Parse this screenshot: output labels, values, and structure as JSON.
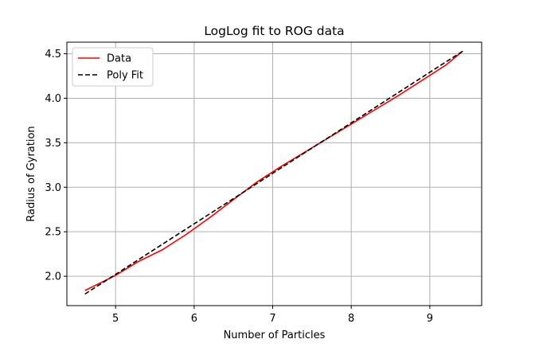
{
  "chart_data": {
    "type": "line",
    "title": "LogLog fit to ROG data",
    "xlabel": "Number of Particles",
    "ylabel": "Radius of Gyration",
    "xlim": [
      4.38,
      9.66
    ],
    "ylim": [
      1.67,
      4.63
    ],
    "xticks": [
      5,
      6,
      7,
      8,
      9
    ],
    "yticks": [
      2.0,
      2.5,
      3.0,
      3.5,
      4.0,
      4.5
    ],
    "grid": true,
    "legend_position": "top-left",
    "series": [
      {
        "name": "Data",
        "style": "solid",
        "color": "#ff0000",
        "x": [
          4.61,
          5.0,
          5.3,
          5.6,
          5.9,
          6.2,
          6.5,
          6.8,
          7.1,
          7.4,
          7.7,
          8.0,
          8.3,
          8.6,
          8.9,
          9.2,
          9.42
        ],
        "y": [
          1.84,
          2.01,
          2.17,
          2.3,
          2.47,
          2.66,
          2.86,
          3.06,
          3.23,
          3.39,
          3.55,
          3.71,
          3.87,
          4.03,
          4.2,
          4.37,
          4.53
        ]
      },
      {
        "name": "Poly Fit",
        "style": "dashed",
        "color": "#000000",
        "x": [
          4.61,
          9.42
        ],
        "y": [
          1.8,
          4.53
        ]
      }
    ]
  }
}
